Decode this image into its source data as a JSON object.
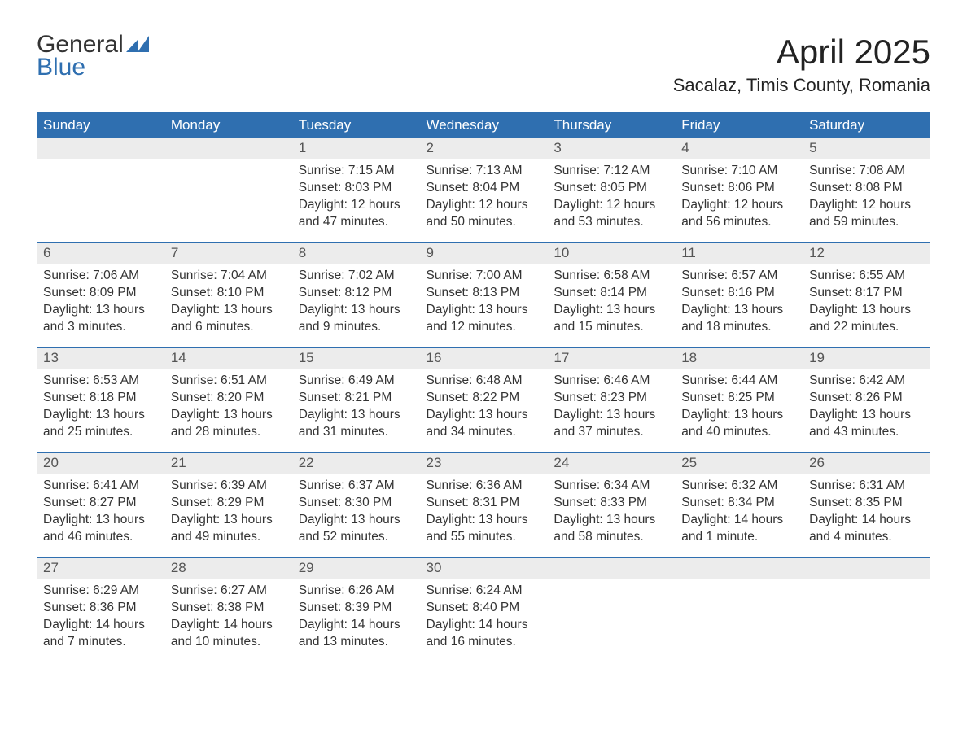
{
  "logo": {
    "word1": "General",
    "word2": "Blue"
  },
  "title": "April 2025",
  "subtitle": "Sacalaz, Timis County, Romania",
  "colors": {
    "header_bg": "#2f6fb0",
    "header_fg": "#ffffff",
    "daynum_bg": "#ececec",
    "daynum_fg": "#555555",
    "rule": "#2f6fb0",
    "text": "#333333",
    "page_bg": "#ffffff",
    "logo_accent": "#2f6fb0"
  },
  "day_labels": [
    "Sunday",
    "Monday",
    "Tuesday",
    "Wednesday",
    "Thursday",
    "Friday",
    "Saturday"
  ],
  "weeks": [
    [
      null,
      null,
      {
        "n": "1",
        "sunrise": "7:15 AM",
        "sunset": "8:03 PM",
        "daylight": "12 hours and 47 minutes."
      },
      {
        "n": "2",
        "sunrise": "7:13 AM",
        "sunset": "8:04 PM",
        "daylight": "12 hours and 50 minutes."
      },
      {
        "n": "3",
        "sunrise": "7:12 AM",
        "sunset": "8:05 PM",
        "daylight": "12 hours and 53 minutes."
      },
      {
        "n": "4",
        "sunrise": "7:10 AM",
        "sunset": "8:06 PM",
        "daylight": "12 hours and 56 minutes."
      },
      {
        "n": "5",
        "sunrise": "7:08 AM",
        "sunset": "8:08 PM",
        "daylight": "12 hours and 59 minutes."
      }
    ],
    [
      {
        "n": "6",
        "sunrise": "7:06 AM",
        "sunset": "8:09 PM",
        "daylight": "13 hours and 3 minutes."
      },
      {
        "n": "7",
        "sunrise": "7:04 AM",
        "sunset": "8:10 PM",
        "daylight": "13 hours and 6 minutes."
      },
      {
        "n": "8",
        "sunrise": "7:02 AM",
        "sunset": "8:12 PM",
        "daylight": "13 hours and 9 minutes."
      },
      {
        "n": "9",
        "sunrise": "7:00 AM",
        "sunset": "8:13 PM",
        "daylight": "13 hours and 12 minutes."
      },
      {
        "n": "10",
        "sunrise": "6:58 AM",
        "sunset": "8:14 PM",
        "daylight": "13 hours and 15 minutes."
      },
      {
        "n": "11",
        "sunrise": "6:57 AM",
        "sunset": "8:16 PM",
        "daylight": "13 hours and 18 minutes."
      },
      {
        "n": "12",
        "sunrise": "6:55 AM",
        "sunset": "8:17 PM",
        "daylight": "13 hours and 22 minutes."
      }
    ],
    [
      {
        "n": "13",
        "sunrise": "6:53 AM",
        "sunset": "8:18 PM",
        "daylight": "13 hours and 25 minutes."
      },
      {
        "n": "14",
        "sunrise": "6:51 AM",
        "sunset": "8:20 PM",
        "daylight": "13 hours and 28 minutes."
      },
      {
        "n": "15",
        "sunrise": "6:49 AM",
        "sunset": "8:21 PM",
        "daylight": "13 hours and 31 minutes."
      },
      {
        "n": "16",
        "sunrise": "6:48 AM",
        "sunset": "8:22 PM",
        "daylight": "13 hours and 34 minutes."
      },
      {
        "n": "17",
        "sunrise": "6:46 AM",
        "sunset": "8:23 PM",
        "daylight": "13 hours and 37 minutes."
      },
      {
        "n": "18",
        "sunrise": "6:44 AM",
        "sunset": "8:25 PM",
        "daylight": "13 hours and 40 minutes."
      },
      {
        "n": "19",
        "sunrise": "6:42 AM",
        "sunset": "8:26 PM",
        "daylight": "13 hours and 43 minutes."
      }
    ],
    [
      {
        "n": "20",
        "sunrise": "6:41 AM",
        "sunset": "8:27 PM",
        "daylight": "13 hours and 46 minutes."
      },
      {
        "n": "21",
        "sunrise": "6:39 AM",
        "sunset": "8:29 PM",
        "daylight": "13 hours and 49 minutes."
      },
      {
        "n": "22",
        "sunrise": "6:37 AM",
        "sunset": "8:30 PM",
        "daylight": "13 hours and 52 minutes."
      },
      {
        "n": "23",
        "sunrise": "6:36 AM",
        "sunset": "8:31 PM",
        "daylight": "13 hours and 55 minutes."
      },
      {
        "n": "24",
        "sunrise": "6:34 AM",
        "sunset": "8:33 PM",
        "daylight": "13 hours and 58 minutes."
      },
      {
        "n": "25",
        "sunrise": "6:32 AM",
        "sunset": "8:34 PM",
        "daylight": "14 hours and 1 minute."
      },
      {
        "n": "26",
        "sunrise": "6:31 AM",
        "sunset": "8:35 PM",
        "daylight": "14 hours and 4 minutes."
      }
    ],
    [
      {
        "n": "27",
        "sunrise": "6:29 AM",
        "sunset": "8:36 PM",
        "daylight": "14 hours and 7 minutes."
      },
      {
        "n": "28",
        "sunrise": "6:27 AM",
        "sunset": "8:38 PM",
        "daylight": "14 hours and 10 minutes."
      },
      {
        "n": "29",
        "sunrise": "6:26 AM",
        "sunset": "8:39 PM",
        "daylight": "14 hours and 13 minutes."
      },
      {
        "n": "30",
        "sunrise": "6:24 AM",
        "sunset": "8:40 PM",
        "daylight": "14 hours and 16 minutes."
      },
      null,
      null,
      null
    ]
  ],
  "labels": {
    "sunrise": "Sunrise: ",
    "sunset": "Sunset: ",
    "daylight": "Daylight: "
  }
}
